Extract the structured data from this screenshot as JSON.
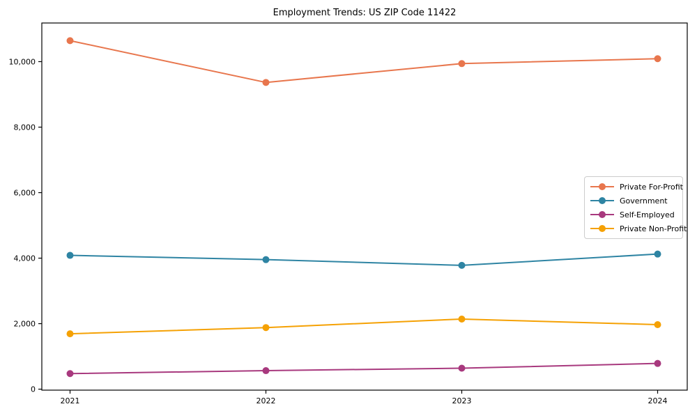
{
  "chart_data": {
    "type": "line",
    "title": "Employment Trends: US ZIP Code 11422",
    "x": [
      2021,
      2022,
      2023,
      2024
    ],
    "xtick_labels": [
      "2021",
      "2022",
      "2023",
      "2024"
    ],
    "series": [
      {
        "name": "Private For-Profit",
        "color": "#e8764d",
        "values": [
          10640,
          9365,
          9940,
          10090
        ]
      },
      {
        "name": "Government",
        "color": "#2e84a3",
        "values": [
          4085,
          3955,
          3780,
          4125
        ]
      },
      {
        "name": "Self-Employed",
        "color": "#a8397e",
        "values": [
          475,
          565,
          640,
          785
        ]
      },
      {
        "name": "Private Non-Profit",
        "color": "#f5a104",
        "values": [
          1690,
          1880,
          2140,
          1970
        ]
      }
    ],
    "xlabel": "",
    "ylabel": "",
    "ylim": [
      -30,
      11180
    ],
    "yticks": [
      0,
      2000,
      4000,
      6000,
      8000,
      10000
    ],
    "ytick_labels": [
      "0",
      "2,000",
      "4,000",
      "6,000",
      "8,000",
      "10,000"
    ],
    "grid": false,
    "legend_position": "center right",
    "marker": "circle",
    "line_width": 2,
    "marker_radius": 5,
    "background_color": "#ffffff",
    "axis_color": "#000000"
  }
}
